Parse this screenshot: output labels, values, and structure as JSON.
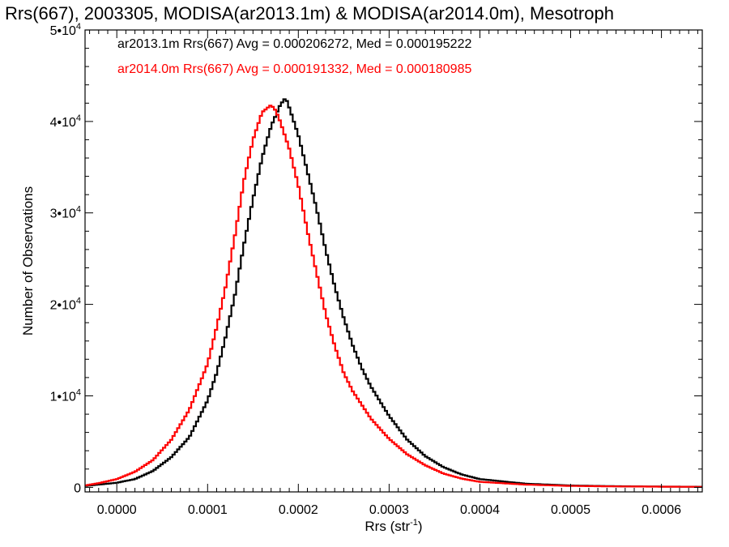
{
  "chart_data": {
    "type": "line",
    "title": "Rrs(667), 2003305, MODISA(ar2013.1m) & MODISA(ar2014.0m), Mesotroph",
    "xlabel": {
      "base": "Rrs (str",
      "sup": "-1",
      "end": ")"
    },
    "ylabel": "Number of Observations",
    "xlim": [
      -3.5e-05,
      0.000645
    ],
    "ylim": [
      -500,
      50000
    ],
    "x_ticks": [
      0.0,
      0.0001,
      0.0002,
      0.0003,
      0.0004,
      0.0005,
      0.0006
    ],
    "x_tick_labels": [
      "0.0000",
      "0.0001",
      "0.0002",
      "0.0003",
      "0.0004",
      "0.0005",
      "0.0006"
    ],
    "y_ticks": [
      {
        "value": 0,
        "base": "0",
        "sup": ""
      },
      {
        "value": 10000,
        "base": "1•10",
        "sup": "4"
      },
      {
        "value": 20000,
        "base": "2•10",
        "sup": "4"
      },
      {
        "value": 30000,
        "base": "3•10",
        "sup": "4"
      },
      {
        "value": 40000,
        "base": "4•10",
        "sup": "4"
      },
      {
        "value": 50000,
        "base": "5•10",
        "sup": "4"
      }
    ],
    "grid": false,
    "legend_position": "top-left",
    "series": [
      {
        "name": "ar2013.1m",
        "color": "#000000",
        "legend_text": "ar2013.1m Rrs(667) Avg = 0.000206272, Med = 0.000195222",
        "x": [
          -3.5e-05,
          -2e-05,
          0.0,
          2e-05,
          4e-05,
          6e-05,
          8e-05,
          0.0001,
          0.00011,
          0.00012,
          0.00013,
          0.00014,
          0.00015,
          0.00016,
          0.00017,
          0.00018,
          0.000186,
          0.00019,
          0.0002,
          0.00021,
          0.00022,
          0.00023,
          0.00024,
          0.00025,
          0.00026,
          0.00027,
          0.00028,
          0.0003,
          0.00032,
          0.00034,
          0.00036,
          0.00038,
          0.0004,
          0.00045,
          0.0005,
          0.00055,
          0.0006,
          0.000645
        ],
        "y": [
          150,
          300,
          500,
          900,
          1800,
          3300,
          5500,
          9500,
          12500,
          16500,
          21000,
          26500,
          31500,
          36000,
          39500,
          41800,
          42600,
          41500,
          38500,
          34500,
          30500,
          26000,
          22000,
          18500,
          15500,
          13000,
          11000,
          7800,
          5200,
          3400,
          2200,
          1400,
          900,
          400,
          200,
          120,
          80,
          60
        ]
      },
      {
        "name": "ar2014.0m",
        "color": "#ff0000",
        "legend_text": "ar2014.0m Rrs(667) Avg = 0.000191332, Med = 0.000180985",
        "x": [
          -3.5e-05,
          -2e-05,
          0.0,
          2e-05,
          4e-05,
          6e-05,
          8e-05,
          0.0001,
          0.00011,
          0.00012,
          0.00013,
          0.00014,
          0.00015,
          0.00016,
          0.00017,
          0.000175,
          0.00018,
          0.00019,
          0.0002,
          0.00021,
          0.00022,
          0.00023,
          0.00024,
          0.00025,
          0.00026,
          0.00027,
          0.00028,
          0.0003,
          0.00032,
          0.00034,
          0.00036,
          0.00038,
          0.0004,
          0.00045,
          0.0005,
          0.00055,
          0.0006,
          0.000645
        ],
        "y": [
          200,
          450,
          900,
          1700,
          3000,
          5200,
          8500,
          13500,
          17500,
          22000,
          27500,
          33500,
          38000,
          41000,
          41800,
          41200,
          40000,
          37000,
          33000,
          28000,
          23500,
          19000,
          15500,
          12500,
          10500,
          9000,
          7500,
          5300,
          3600,
          2400,
          1500,
          950,
          600,
          300,
          150,
          100,
          70,
          50
        ]
      }
    ]
  }
}
